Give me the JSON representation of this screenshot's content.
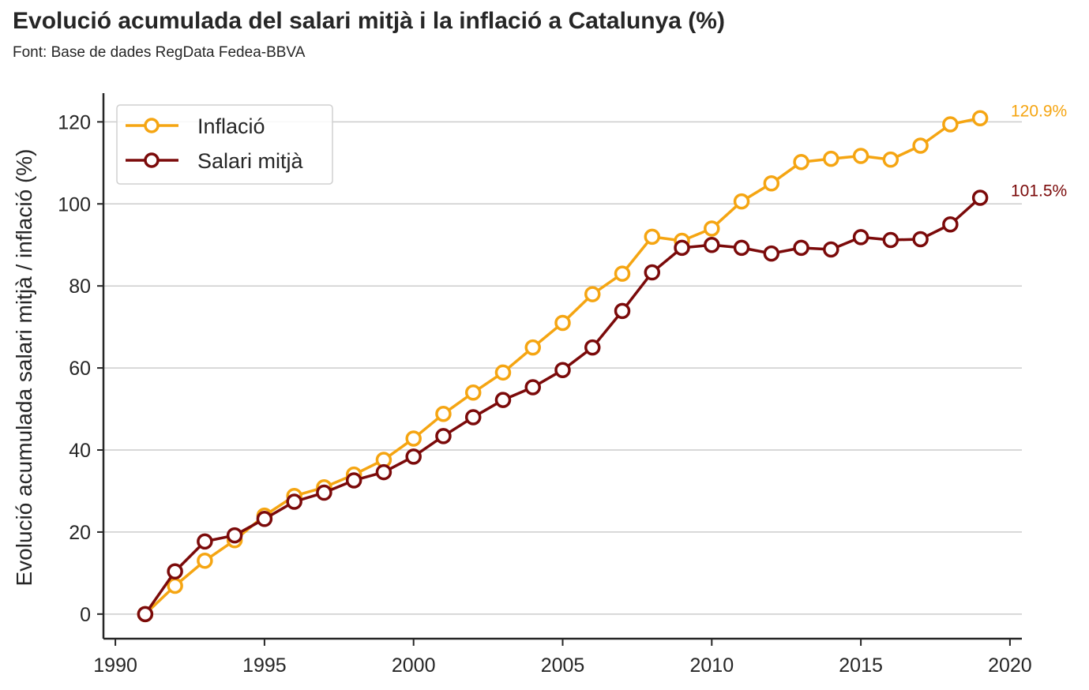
{
  "header": {
    "title": "Evolució acumulada del salari mitjà i la inflació a Catalunya (%)",
    "subtitle": "Font: Base de dades RegData Fedea-BBVA"
  },
  "colors": {
    "inflacio": "#f5a512",
    "salari": "#7b0a0a",
    "grid": "#cccccc",
    "axis": "#262626"
  },
  "chart_data": {
    "type": "line",
    "title": "Evolució acumulada del salari mitjà i la inflació a Catalunya (%)",
    "subtitle": "Font: Base de dades RegData Fedea-BBVA",
    "xlabel": "",
    "ylabel": "Evolució acumulada salari mitjà / inflació (%)",
    "xlim": [
      1989.6,
      2020.4
    ],
    "ylim": [
      -6,
      127
    ],
    "xticks": [
      1990,
      1995,
      2000,
      2005,
      2010,
      2015,
      2020
    ],
    "yticks": [
      0,
      20,
      40,
      60,
      80,
      100,
      120
    ],
    "grid": "horizontal",
    "legend": "top-left",
    "x": [
      1991,
      1992,
      1993,
      1994,
      1995,
      1996,
      1997,
      1998,
      1999,
      2000,
      2001,
      2002,
      2003,
      2004,
      2005,
      2006,
      2007,
      2008,
      2009,
      2010,
      2011,
      2012,
      2013,
      2014,
      2015,
      2016,
      2017,
      2018,
      2019
    ],
    "series": [
      {
        "key": "inflacio",
        "name": "Inflació",
        "values": [
          0,
          6.9,
          13.0,
          18.0,
          24.0,
          28.8,
          30.9,
          34.0,
          37.6,
          42.8,
          48.8,
          54.0,
          58.9,
          65.0,
          71.0,
          78.0,
          83.0,
          92.0,
          91.0,
          94.0,
          100.6,
          105.0,
          110.2,
          111.0,
          111.7,
          110.8,
          114.2,
          119.4,
          120.9
        ],
        "end_label": "120.9%"
      },
      {
        "key": "salari",
        "name": "Salari mitjà",
        "values": [
          0,
          10.4,
          17.7,
          19.2,
          23.2,
          27.4,
          29.6,
          32.6,
          34.6,
          38.4,
          43.4,
          48.0,
          52.2,
          55.3,
          59.5,
          65.0,
          73.9,
          83.3,
          89.3,
          90.0,
          89.3,
          87.9,
          89.3,
          88.9,
          91.9,
          91.2,
          91.4,
          95.0,
          101.5
        ],
        "end_label": "101.5%"
      }
    ]
  }
}
